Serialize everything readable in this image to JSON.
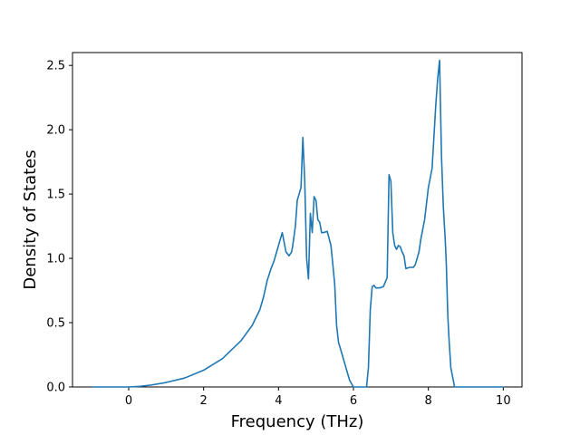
{
  "chart_data": {
    "type": "line",
    "title": "",
    "xlabel": "Frequency (THz)",
    "ylabel": "Density of States",
    "xlim": [
      -1.5,
      10.5
    ],
    "ylim": [
      0.0,
      2.6
    ],
    "xticks": [
      0,
      2,
      4,
      6,
      8,
      10
    ],
    "xtick_labels": [
      "0",
      "2",
      "4",
      "6",
      "8",
      "10"
    ],
    "yticks": [
      0.0,
      0.5,
      1.0,
      1.5,
      2.0,
      2.5
    ],
    "ytick_labels": [
      "0.0",
      "0.5",
      "1.0",
      "1.5",
      "2.0",
      "2.5"
    ],
    "grid": false,
    "line_color": "#1f77b4",
    "series": [
      {
        "x": [
          -0.95,
          0.0,
          0.3,
          0.6,
          1.0,
          1.5,
          2.0,
          2.5,
          3.0,
          3.3,
          3.5,
          3.6,
          3.7,
          3.8,
          3.88,
          3.95,
          4.0,
          4.1,
          4.2,
          4.28,
          4.35,
          4.38,
          4.45,
          4.5,
          4.6,
          4.65,
          4.7,
          4.75,
          4.8,
          4.85,
          4.9,
          4.95,
          5.0,
          5.05,
          5.1,
          5.15,
          5.2,
          5.3,
          5.4,
          5.5,
          5.55,
          5.6,
          5.7,
          5.8,
          5.9,
          6.0,
          6.05,
          6.35,
          6.4,
          6.45,
          6.5,
          6.55,
          6.6,
          6.7,
          6.8,
          6.9,
          6.95,
          7.0,
          7.05,
          7.1,
          7.15,
          7.2,
          7.25,
          7.3,
          7.35,
          7.4,
          7.5,
          7.6,
          7.65,
          7.7,
          7.75,
          7.8,
          7.9,
          8.0,
          8.1,
          8.15,
          8.2,
          8.25,
          8.3,
          8.35,
          8.4,
          8.45,
          8.48,
          8.5,
          8.52,
          8.55,
          8.6,
          8.7,
          8.8,
          8.9,
          9.0,
          9.05,
          9.1,
          9.2,
          10.0
        ],
        "y": [
          0.0,
          0.0,
          0.005,
          0.015,
          0.035,
          0.07,
          0.13,
          0.22,
          0.36,
          0.48,
          0.6,
          0.7,
          0.83,
          0.92,
          0.98,
          1.05,
          1.1,
          1.2,
          1.05,
          1.02,
          1.05,
          1.1,
          1.25,
          1.45,
          1.55,
          1.94,
          1.6,
          1.0,
          0.84,
          1.35,
          1.2,
          1.48,
          1.45,
          1.3,
          1.28,
          1.2,
          1.2,
          1.21,
          1.1,
          0.8,
          0.48,
          0.35,
          0.25,
          0.15,
          0.05,
          0.0,
          0.0,
          0.0,
          0.15,
          0.6,
          0.78,
          0.79,
          0.77,
          0.77,
          0.78,
          0.85,
          1.65,
          1.6,
          1.2,
          1.1,
          1.07,
          1.1,
          1.09,
          1.05,
          1.02,
          0.92,
          0.93,
          0.93,
          0.95,
          1.0,
          1.05,
          1.15,
          1.3,
          1.55,
          1.7,
          1.95,
          2.2,
          2.4,
          2.54,
          1.8,
          1.4,
          1.15,
          0.95,
          0.75,
          0.55,
          0.38,
          0.15,
          0.0,
          0.0,
          0.0,
          0.0,
          0.0,
          0.0,
          0.0,
          0.0
        ]
      }
    ]
  }
}
